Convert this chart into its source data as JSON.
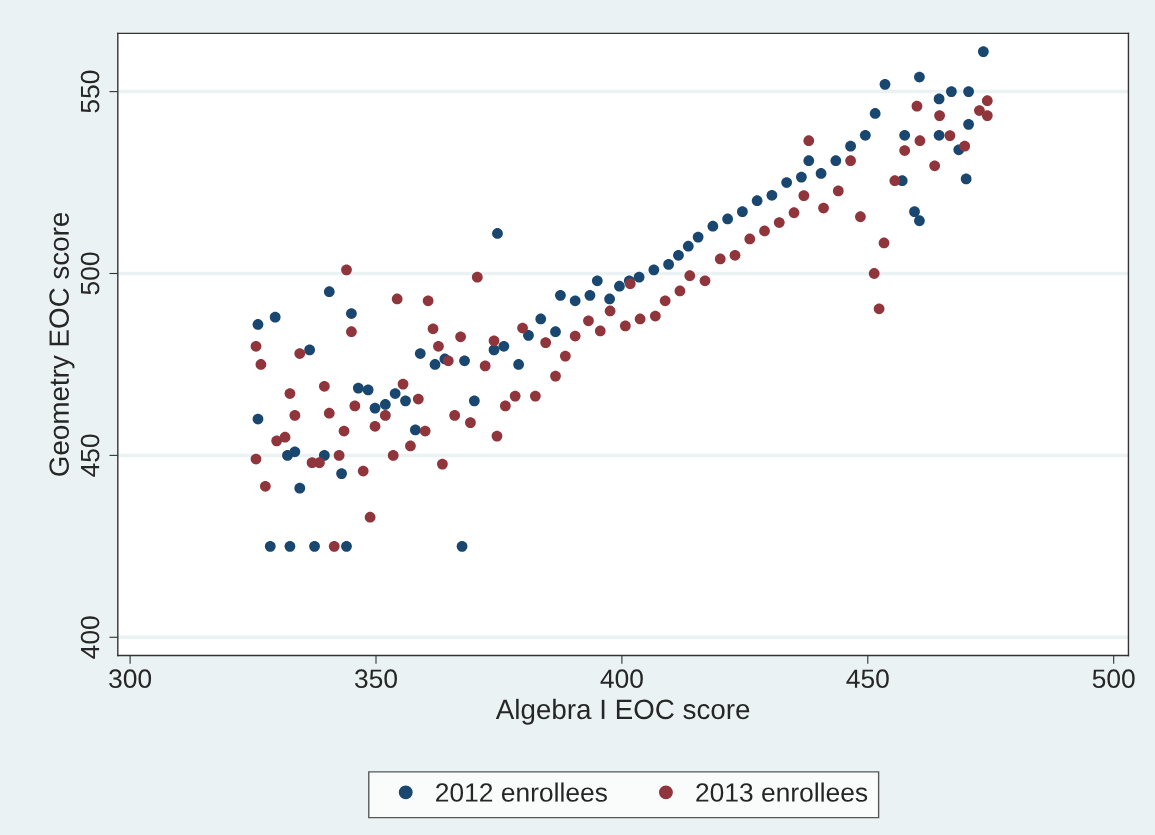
{
  "chart_data": {
    "type": "scatter",
    "xlabel": "Algebra I EOC score",
    "ylabel": "Geometry EOC score",
    "xlim": [
      297.5,
      503
    ],
    "ylim": [
      395,
      566
    ],
    "xticks": [
      300,
      350,
      400,
      450,
      500
    ],
    "yticks": [
      400,
      450,
      500,
      550
    ],
    "grid": "y",
    "legend": "bottom",
    "marker": "circle",
    "series": [
      {
        "name": "2012 enrollees",
        "color": "#1a476f",
        "x": [
          326,
          326,
          328.5,
          329.5,
          332,
          332.5,
          333.5,
          334.5,
          336.5,
          337.5,
          339.5,
          340.5,
          343,
          344,
          345,
          346.4,
          348.4,
          349.8,
          351.9,
          353.9,
          356,
          358,
          359,
          362,
          364,
          367.5,
          368,
          370,
          374,
          374.7,
          376,
          379,
          381,
          383.5,
          386.5,
          387.5,
          390.5,
          393.5,
          395,
          397.5,
          399.5,
          401.5,
          403.5,
          406.5,
          409.5,
          411.5,
          413.5,
          415.5,
          418.5,
          421.5,
          424.5,
          427.5,
          430.5,
          433.5,
          436.5,
          438,
          440.5,
          443.5,
          446.5,
          449.5,
          451.5,
          453.5,
          457,
          457.5,
          459.5,
          460.5,
          460.5,
          464.5,
          464.5,
          467,
          468.5,
          470.5,
          470,
          473.5,
          470.5
        ],
        "values": [
          486,
          460,
          425,
          488,
          450,
          425,
          451,
          441,
          479,
          425,
          450,
          495,
          445,
          425,
          489,
          468.5,
          468,
          463,
          464,
          467,
          465,
          457,
          478,
          475,
          476.5,
          425,
          476,
          465,
          479,
          511,
          480,
          475,
          483,
          487.5,
          484,
          494,
          492.5,
          494,
          498,
          493,
          496.5,
          498,
          499,
          501,
          502.5,
          505,
          507.5,
          510,
          513,
          515,
          517,
          520,
          521.5,
          525,
          526.5,
          531,
          527.5,
          531,
          535,
          538,
          544,
          552,
          525.5,
          538,
          517,
          514.5,
          554,
          538,
          548,
          550,
          534,
          550,
          526,
          561,
          541
        ]
      },
      {
        "name": "2013 enrollees",
        "color": "#90353b",
        "x": [
          325.6,
          325.6,
          326.6,
          327.5,
          329.8,
          331.5,
          332.5,
          333.5,
          334.5,
          337,
          338.5,
          339.5,
          340.5,
          341.5,
          342.5,
          343.5,
          344,
          345,
          345.7,
          347.4,
          348.8,
          349.8,
          351.9,
          353.5,
          354.3,
          355.5,
          357,
          358.6,
          360,
          360.6,
          361.6,
          362.7,
          363.5,
          364.7,
          366,
          367.2,
          369.2,
          370.6,
          372.2,
          374,
          374.6,
          376.3,
          378.3,
          379.8,
          382.4,
          384.5,
          386.5,
          388.5,
          390.5,
          393.2,
          395.6,
          397.6,
          400.7,
          401.7,
          403.7,
          406.8,
          408.8,
          411.8,
          413.8,
          416.9,
          420,
          423,
          426,
          429,
          432,
          435,
          437,
          438,
          441,
          444,
          446.5,
          448.5,
          451.3,
          452.3,
          453.3,
          455.5,
          457.5,
          460,
          460.6,
          463.6,
          464.6,
          466.7,
          469.7,
          472.7,
          474.3,
          474.3
        ],
        "values": [
          480,
          449,
          475,
          441.5,
          454,
          455,
          467,
          461,
          478,
          448,
          448,
          469,
          461.6,
          425,
          450,
          456.7,
          501,
          484,
          463.6,
          445.7,
          433,
          458,
          461,
          450,
          493,
          469.6,
          452.6,
          465.5,
          456.7,
          492.5,
          484.8,
          480,
          447.6,
          476,
          461,
          482.6,
          459,
          499,
          474.6,
          481.5,
          455.3,
          463.6,
          466.3,
          485,
          466.3,
          481,
          471.8,
          477.3,
          482.8,
          487,
          484.2,
          489.7,
          485.6,
          497.2,
          487.5,
          488.3,
          492.5,
          495.2,
          499.4,
          498,
          504,
          505,
          509.5,
          511.7,
          514,
          516.7,
          521.4,
          536.5,
          518,
          522.7,
          531,
          515.6,
          500,
          490.3,
          508.4,
          525.5,
          533.8,
          546,
          536.5,
          529.6,
          543.4,
          537.9,
          535,
          544.8,
          547.5,
          543.4
        ]
      }
    ]
  }
}
